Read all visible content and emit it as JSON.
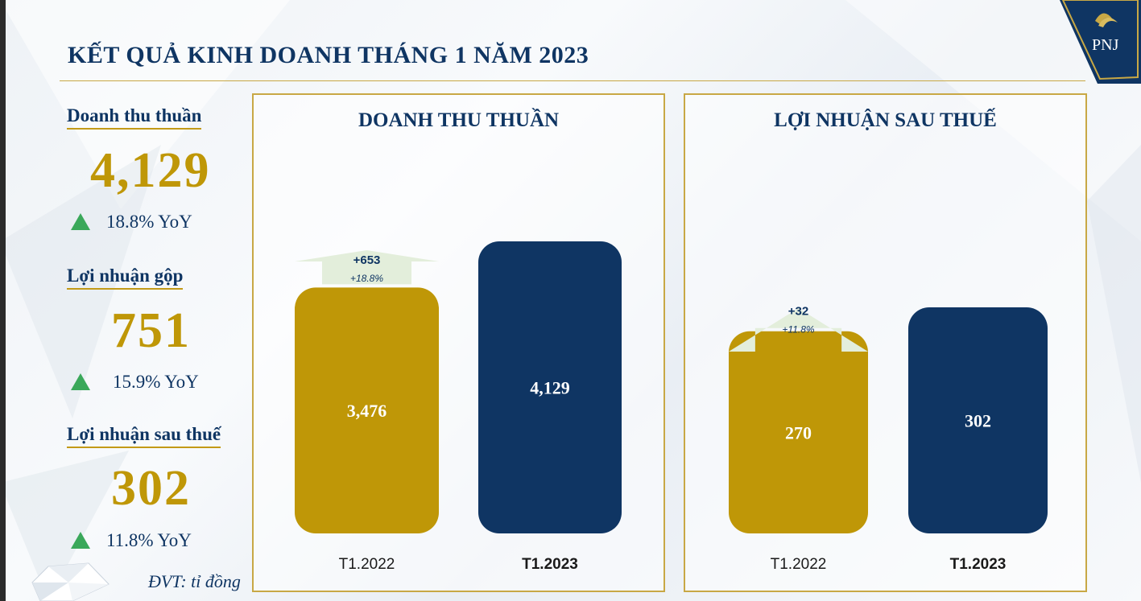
{
  "page": {
    "title": "KẾT QUẢ KINH DOANH THÁNG 1 NĂM 2023",
    "logo_text": "PNJ",
    "unit_note": "ĐVT: tỉ đồng"
  },
  "kpis": [
    {
      "label": "Doanh thu thuần",
      "value": "4,129",
      "yoy": "18.8% YoY"
    },
    {
      "label": "Lợi nhuận gộp",
      "value": "751",
      "yoy": "15.9% YoY"
    },
    {
      "label": "Lợi nhuận sau thuế",
      "value": "302",
      "yoy": "11.8% YoY"
    }
  ],
  "colors": {
    "navy": "#0f3563",
    "gold": "#bf9707",
    "up_green": "#3aa85a",
    "arrow_fill": "#e3eedb"
  },
  "chart_data": [
    {
      "type": "bar",
      "title": "DOANH THU THUẦN",
      "categories": [
        "T1.2022",
        "T1.2023"
      ],
      "values": [
        3476,
        4129
      ],
      "value_labels": [
        "3,476",
        "4,129"
      ],
      "bar_colors": [
        "#bf9707",
        "#0f3563"
      ],
      "change": {
        "abs": "+653",
        "pct": "+18.8%"
      },
      "ylim": [
        0,
        4129
      ]
    },
    {
      "type": "bar",
      "title": "LỢI NHUẬN SAU THUẾ",
      "categories": [
        "T1.2022",
        "T1.2023"
      ],
      "values": [
        270,
        302
      ],
      "value_labels": [
        "270",
        "302"
      ],
      "bar_colors": [
        "#bf9707",
        "#0f3563"
      ],
      "change": {
        "abs": "+32",
        "pct": "+11.8%"
      },
      "ylim": [
        0,
        402
      ]
    }
  ]
}
